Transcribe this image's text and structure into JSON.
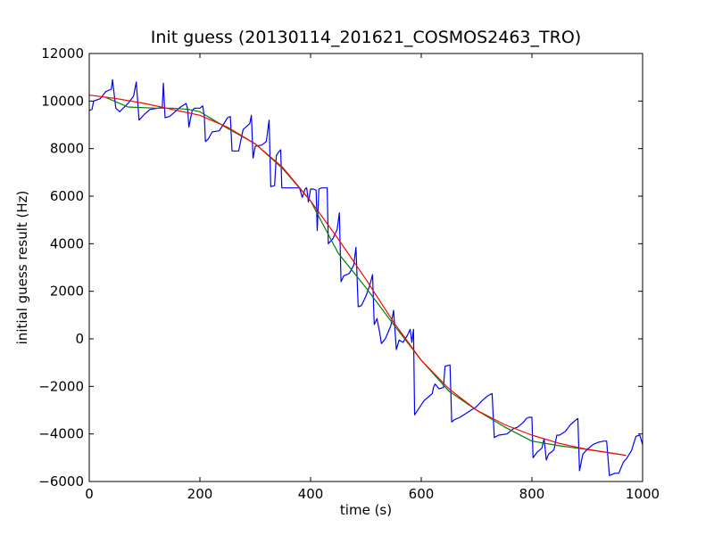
{
  "chart_data": {
    "type": "line",
    "title": "Init guess (20130114_201621_COSMOS2463_TRO)",
    "xlabel": "time (s)",
    "ylabel": "initial guess result (Hz)",
    "xlim": [
      0,
      1000
    ],
    "ylim": [
      -6000,
      12000
    ],
    "x_ticks": [
      0,
      200,
      400,
      600,
      800,
      1000
    ],
    "x_tick_labels": [
      "0",
      "200",
      "400",
      "600",
      "800",
      "1000"
    ],
    "y_ticks": [
      -6000,
      -4000,
      -2000,
      0,
      2000,
      4000,
      6000,
      8000,
      10000,
      12000
    ],
    "y_tick_labels": [
      "−6000",
      "−4000",
      "−2000",
      "0",
      "2000",
      "4000",
      "6000",
      "8000",
      "10000",
      "12000"
    ],
    "grid": false,
    "series": [
      {
        "color": "#0000ff",
        "points": [
          [
            0,
            9600
          ],
          [
            5,
            9650
          ],
          [
            8,
            10000
          ],
          [
            20,
            10100
          ],
          [
            30,
            10400
          ],
          [
            40,
            10500
          ],
          [
            42,
            10900
          ],
          [
            48,
            9700
          ],
          [
            55,
            9550
          ],
          [
            70,
            9900
          ],
          [
            80,
            10200
          ],
          [
            85,
            10800
          ],
          [
            90,
            9200
          ],
          [
            100,
            9450
          ],
          [
            110,
            9650
          ],
          [
            125,
            9700
          ],
          [
            132,
            9750
          ],
          [
            134,
            10750
          ],
          [
            137,
            9300
          ],
          [
            145,
            9350
          ],
          [
            155,
            9550
          ],
          [
            165,
            9750
          ],
          [
            175,
            9900
          ],
          [
            178,
            9650
          ],
          [
            180,
            8900
          ],
          [
            186,
            9600
          ],
          [
            190,
            9700
          ],
          [
            200,
            9700
          ],
          [
            205,
            9800
          ],
          [
            208,
            9350
          ],
          [
            210,
            8300
          ],
          [
            215,
            8400
          ],
          [
            222,
            8700
          ],
          [
            235,
            8750
          ],
          [
            242,
            9000
          ],
          [
            250,
            9300
          ],
          [
            255,
            9350
          ],
          [
            258,
            7900
          ],
          [
            270,
            7900
          ],
          [
            278,
            8800
          ],
          [
            290,
            9050
          ],
          [
            293,
            9400
          ],
          [
            296,
            7600
          ],
          [
            300,
            8100
          ],
          [
            312,
            8150
          ],
          [
            320,
            8300
          ],
          [
            325,
            9200
          ],
          [
            328,
            6400
          ],
          [
            335,
            6450
          ],
          [
            338,
            7700
          ],
          [
            342,
            7850
          ],
          [
            346,
            7950
          ],
          [
            348,
            6350
          ],
          [
            365,
            6350
          ],
          [
            375,
            6350
          ],
          [
            380,
            6350
          ],
          [
            385,
            5950
          ],
          [
            390,
            6300
          ],
          [
            393,
            6350
          ],
          [
            396,
            5750
          ],
          [
            400,
            6300
          ],
          [
            405,
            6300
          ],
          [
            410,
            6250
          ],
          [
            412,
            4550
          ],
          [
            415,
            6300
          ],
          [
            420,
            6350
          ],
          [
            430,
            6350
          ],
          [
            432,
            4000
          ],
          [
            440,
            4200
          ],
          [
            448,
            4600
          ],
          [
            452,
            5300
          ],
          [
            455,
            2400
          ],
          [
            460,
            2650
          ],
          [
            470,
            2750
          ],
          [
            478,
            3100
          ],
          [
            482,
            3850
          ],
          [
            486,
            1350
          ],
          [
            492,
            1400
          ],
          [
            500,
            1800
          ],
          [
            507,
            2250
          ],
          [
            512,
            2700
          ],
          [
            515,
            600
          ],
          [
            520,
            850
          ],
          [
            525,
            250
          ],
          [
            528,
            -200
          ],
          [
            535,
            0
          ],
          [
            545,
            550
          ],
          [
            550,
            1200
          ],
          [
            555,
            -450
          ],
          [
            560,
            -50
          ],
          [
            567,
            -150
          ],
          [
            575,
            150
          ],
          [
            580,
            400
          ],
          [
            583,
            -150
          ],
          [
            586,
            400
          ],
          [
            588,
            -3200
          ],
          [
            595,
            -2950
          ],
          [
            605,
            -2600
          ],
          [
            615,
            -2400
          ],
          [
            620,
            -2300
          ],
          [
            622,
            -2050
          ],
          [
            625,
            -1900
          ],
          [
            632,
            -2100
          ],
          [
            640,
            -2050
          ],
          [
            643,
            -1150
          ],
          [
            652,
            -1100
          ],
          [
            655,
            -3500
          ],
          [
            660,
            -3400
          ],
          [
            670,
            -3300
          ],
          [
            680,
            -3150
          ],
          [
            700,
            -2850
          ],
          [
            710,
            -2600
          ],
          [
            720,
            -2400
          ],
          [
            728,
            -2300
          ],
          [
            732,
            -4150
          ],
          [
            740,
            -4050
          ],
          [
            755,
            -4000
          ],
          [
            765,
            -3800
          ],
          [
            775,
            -3700
          ],
          [
            785,
            -3500
          ],
          [
            790,
            -3350
          ],
          [
            795,
            -3300
          ],
          [
            800,
            -3300
          ],
          [
            802,
            -5000
          ],
          [
            810,
            -4750
          ],
          [
            818,
            -4600
          ],
          [
            822,
            -4200
          ],
          [
            826,
            -5100
          ],
          [
            830,
            -4850
          ],
          [
            836,
            -4750
          ],
          [
            840,
            -4650
          ],
          [
            845,
            -4050
          ],
          [
            850,
            -4050
          ],
          [
            860,
            -3900
          ],
          [
            870,
            -3600
          ],
          [
            880,
            -3400
          ],
          [
            883,
            -3350
          ],
          [
            886,
            -5550
          ],
          [
            892,
            -4850
          ],
          [
            900,
            -4650
          ],
          [
            910,
            -4450
          ],
          [
            920,
            -4350
          ],
          [
            930,
            -4300
          ],
          [
            935,
            -4300
          ],
          [
            940,
            -5750
          ],
          [
            950,
            -5650
          ],
          [
            957,
            -5650
          ],
          [
            965,
            -5200
          ],
          [
            972,
            -5000
          ],
          [
            980,
            -4700
          ],
          [
            988,
            -4100
          ],
          [
            995,
            -4050
          ],
          [
            1000,
            -4450
          ]
        ]
      },
      {
        "color": "#008000",
        "points": [
          [
            30,
            10150
          ],
          [
            70,
            9750
          ],
          [
            120,
            9700
          ],
          [
            150,
            9700
          ],
          [
            180,
            9650
          ],
          [
            200,
            9550
          ],
          [
            250,
            8850
          ],
          [
            300,
            8200
          ],
          [
            350,
            7150
          ],
          [
            400,
            5800
          ],
          [
            450,
            3600
          ],
          [
            500,
            2150
          ],
          [
            550,
            600
          ],
          [
            600,
            -900
          ],
          [
            650,
            -2200
          ],
          [
            700,
            -3000
          ],
          [
            750,
            -3700
          ],
          [
            800,
            -4300
          ],
          [
            850,
            -4500
          ],
          [
            900,
            -4650
          ],
          [
            970,
            -4900
          ]
        ]
      },
      {
        "color": "#ff0000",
        "points": [
          [
            0,
            10250
          ],
          [
            50,
            10100
          ],
          [
            100,
            9900
          ],
          [
            150,
            9650
          ],
          [
            200,
            9400
          ],
          [
            250,
            8900
          ],
          [
            300,
            8200
          ],
          [
            350,
            7200
          ],
          [
            400,
            5800
          ],
          [
            450,
            4200
          ],
          [
            500,
            2500
          ],
          [
            550,
            700
          ],
          [
            600,
            -900
          ],
          [
            650,
            -2100
          ],
          [
            700,
            -3000
          ],
          [
            750,
            -3600
          ],
          [
            800,
            -4050
          ],
          [
            850,
            -4400
          ],
          [
            900,
            -4650
          ],
          [
            970,
            -4900
          ]
        ]
      }
    ]
  }
}
